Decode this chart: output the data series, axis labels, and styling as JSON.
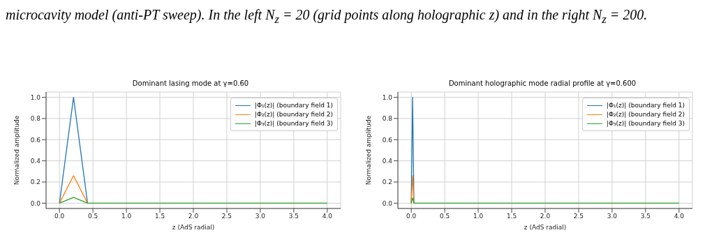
{
  "chart_data": [
    {
      "type": "other",
      "annotations": [
        "microcavity model (anti-PT sweep). In the left N$_{z}$ = 20 (grid points along holographic z) and in the right N$_{z}$ = 200."
      ]
    },
    {
      "type": "line",
      "title": "Dominant lasing mode at γ=0.60",
      "xlabel": "z (AdS radial)",
      "ylabel": "Normalized amplitude",
      "x": [
        0,
        0.21,
        0.42,
        0.63,
        4.0
      ],
      "series": [
        {
          "name": "|Φ₁(z)| (boundary field 1)",
          "color": "#1f77b4",
          "values": [
            0,
            1.0,
            0.0,
            null,
            null
          ]
        },
        {
          "name": "|Φ₂(z)| (boundary field 2)",
          "color": "#ff7f0e",
          "values": [
            0,
            0.26,
            0.0,
            null,
            null
          ]
        },
        {
          "name": "|Φ₃(z)| (boundary field 3)",
          "color": "#2ca02c",
          "values": [
            0,
            0.055,
            0.0,
            0,
            0
          ]
        }
      ],
      "xlim": [
        -0.2,
        4.2
      ],
      "xticks": [
        {
          "value": 0,
          "label": "0.0"
        },
        {
          "value": 0.5,
          "label": "0.5"
        },
        {
          "value": 1,
          "label": "1.0"
        },
        {
          "value": 1.5,
          "label": "1.5"
        },
        {
          "value": 2,
          "label": "2.0"
        },
        {
          "value": 2.5,
          "label": "2.5"
        },
        {
          "value": 3,
          "label": "3.0"
        },
        {
          "value": 3.5,
          "label": "3.5"
        },
        {
          "value": 4,
          "label": "4.0"
        }
      ],
      "ylim": [
        -0.05,
        1.05
      ],
      "yticks": [
        {
          "value": 0,
          "label": "0.0"
        },
        {
          "value": 0.2,
          "label": "0.2"
        },
        {
          "value": 0.4,
          "label": "0.4"
        },
        {
          "value": 0.6,
          "label": "0.6"
        },
        {
          "value": 0.8,
          "label": "0.8"
        },
        {
          "value": 1,
          "label": "1.0"
        }
      ],
      "grid": true,
      "legend": "top right",
      "marker": "none",
      "line_style": "solid"
    },
    {
      "type": "line",
      "title": "Dominant holographic mode radial profile at γ=0.600",
      "xlabel": "z (AdS radial)",
      "ylabel": "Normalized amplitude",
      "x": [
        0,
        0.02,
        0.04,
        0.06,
        4.0
      ],
      "series": [
        {
          "name": "|Φ₁(z)| (boundary field 1)",
          "color": "#1f77b4",
          "values": [
            0,
            1.0,
            0.0,
            null,
            null
          ]
        },
        {
          "name": "|Φ₂(z)| (boundary field 2)",
          "color": "#ff7f0e",
          "values": [
            0,
            0.26,
            0.0,
            null,
            null
          ]
        },
        {
          "name": "|Φ₃(z)| (boundary field 3)",
          "color": "#2ca02c",
          "values": [
            0,
            0.05,
            0.0,
            0,
            0
          ]
        }
      ],
      "xlim": [
        -0.2,
        4.2
      ],
      "xticks": [
        {
          "value": 0,
          "label": "0.0"
        },
        {
          "value": 0.5,
          "label": "0.5"
        },
        {
          "value": 1,
          "label": "1.0"
        },
        {
          "value": 1.5,
          "label": "1.5"
        },
        {
          "value": 2,
          "label": "2.0"
        },
        {
          "value": 2.5,
          "label": "2.5"
        },
        {
          "value": 3,
          "label": "3.0"
        },
        {
          "value": 3.5,
          "label": "3.5"
        },
        {
          "value": 4,
          "label": "4.0"
        }
      ],
      "ylim": [
        -0.05,
        1.05
      ],
      "yticks": [
        {
          "value": 0,
          "label": "0.0"
        },
        {
          "value": 0.2,
          "label": "0.2"
        },
        {
          "value": 0.4,
          "label": "0.4"
        },
        {
          "value": 0.6,
          "label": "0.6"
        },
        {
          "value": 0.8,
          "label": "0.8"
        },
        {
          "value": 1,
          "label": "1.0"
        }
      ],
      "grid": true,
      "legend": "top right",
      "marker": "none",
      "line_style": "solid"
    }
  ]
}
